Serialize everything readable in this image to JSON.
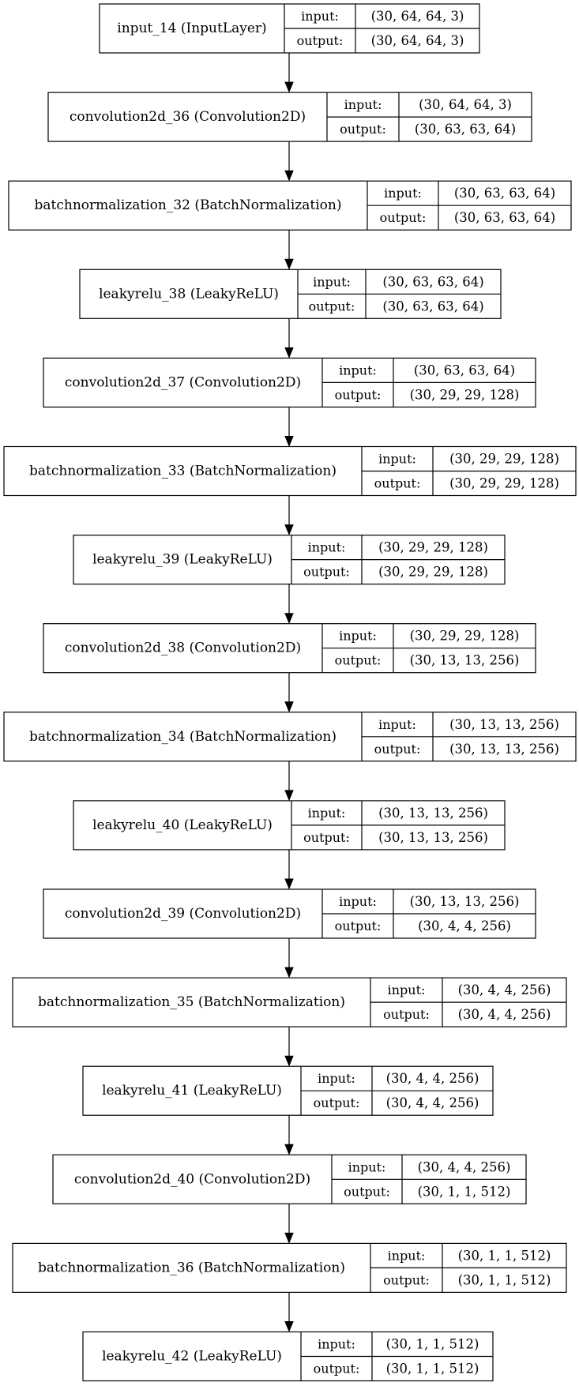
{
  "port_labels": {
    "input": "input:",
    "output": "output:"
  },
  "layers": [
    {
      "name": "input_14 (InputLayer)",
      "input": "(30, 64, 64, 3)",
      "output": "(30, 64, 64, 3)"
    },
    {
      "name": "convolution2d_36 (Convolution2D)",
      "input": "(30, 64, 64, 3)",
      "output": "(30, 63, 63, 64)"
    },
    {
      "name": "batchnormalization_32 (BatchNormalization)",
      "input": "(30, 63, 63, 64)",
      "output": "(30, 63, 63, 64)"
    },
    {
      "name": "leakyrelu_38 (LeakyReLU)",
      "input": "(30, 63, 63, 64)",
      "output": "(30, 63, 63, 64)"
    },
    {
      "name": "convolution2d_37 (Convolution2D)",
      "input": "(30, 63, 63, 64)",
      "output": "(30, 29, 29, 128)"
    },
    {
      "name": "batchnormalization_33 (BatchNormalization)",
      "input": "(30, 29, 29, 128)",
      "output": "(30, 29, 29, 128)"
    },
    {
      "name": "leakyrelu_39 (LeakyReLU)",
      "input": "(30, 29, 29, 128)",
      "output": "(30, 29, 29, 128)"
    },
    {
      "name": "convolution2d_38 (Convolution2D)",
      "input": "(30, 29, 29, 128)",
      "output": "(30, 13, 13, 256)"
    },
    {
      "name": "batchnormalization_34 (BatchNormalization)",
      "input": "(30, 13, 13, 256)",
      "output": "(30, 13, 13, 256)"
    },
    {
      "name": "leakyrelu_40 (LeakyReLU)",
      "input": "(30, 13, 13, 256)",
      "output": "(30, 13, 13, 256)"
    },
    {
      "name": "convolution2d_39 (Convolution2D)",
      "input": "(30, 13, 13, 256)",
      "output": "(30, 4, 4, 256)"
    },
    {
      "name": "batchnormalization_35 (BatchNormalization)",
      "input": "(30, 4, 4, 256)",
      "output": "(30, 4, 4, 256)"
    },
    {
      "name": "leakyrelu_41 (LeakyReLU)",
      "input": "(30, 4, 4, 256)",
      "output": "(30, 4, 4, 256)"
    },
    {
      "name": "convolution2d_40 (Convolution2D)",
      "input": "(30, 4, 4, 256)",
      "output": "(30, 1, 1, 512)"
    },
    {
      "name": "batchnormalization_36 (BatchNormalization)",
      "input": "(30, 1, 1, 512)",
      "output": "(30, 1, 1, 512)"
    },
    {
      "name": "leakyrelu_42 (LeakyReLU)",
      "input": "(30, 1, 1, 512)",
      "output": "(30, 1, 1, 512)"
    }
  ]
}
